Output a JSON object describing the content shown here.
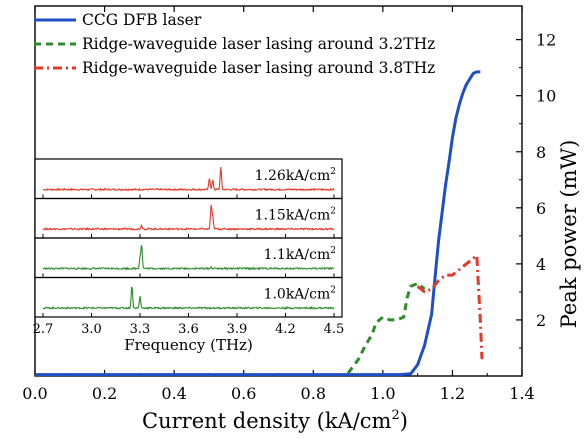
{
  "chart_data": [
    {
      "type": "line",
      "title": "",
      "xlabel": "Current density (kA/cm",
      "xlabel_sup": "2",
      "xlabel_end": ")",
      "ylabel": "Peak power (mW)",
      "xlim": [
        0.0,
        1.4
      ],
      "ylim": [
        0,
        13.2
      ],
      "xticks": [
        "0.0",
        "0.2",
        "0.4",
        "0.6",
        "0.8",
        "1.0",
        "1.2",
        "1.4"
      ],
      "yticks": [
        "2",
        "4",
        "6",
        "8",
        "10",
        "12"
      ],
      "legend_position": "top-left",
      "series": [
        {
          "name": "CCG DFB laser",
          "color": "#1f4fc4",
          "style": "solid",
          "x": [
            0.0,
            0.1,
            0.2,
            0.3,
            0.4,
            0.5,
            0.6,
            0.7,
            0.8,
            0.9,
            1.0,
            1.05,
            1.08,
            1.1,
            1.12,
            1.14,
            1.15,
            1.16,
            1.17,
            1.18,
            1.19,
            1.2,
            1.21,
            1.22,
            1.23,
            1.24,
            1.25,
            1.26,
            1.27,
            1.28
          ],
          "y": [
            0.05,
            0.05,
            0.05,
            0.05,
            0.05,
            0.05,
            0.05,
            0.05,
            0.05,
            0.05,
            0.05,
            0.05,
            0.08,
            0.4,
            1.1,
            2.2,
            3.5,
            4.8,
            5.8,
            6.8,
            7.6,
            8.5,
            9.2,
            9.7,
            10.1,
            10.4,
            10.6,
            10.8,
            10.85,
            10.85
          ]
        },
        {
          "name": "Ridge-waveguide laser lasing around 3.2THz",
          "color": "#2e8b2e",
          "style": "dashed",
          "x": [
            0.9,
            0.93,
            0.95,
            0.97,
            0.98,
            1.0,
            1.02,
            1.04,
            1.06,
            1.07,
            1.08,
            1.1,
            1.12
          ],
          "y": [
            0.1,
            0.6,
            1.1,
            1.5,
            1.9,
            2.1,
            2.0,
            2.0,
            2.1,
            2.8,
            3.2,
            3.3,
            3.1
          ]
        },
        {
          "name": "Ridge-waveguide laser lasing around 3.8THz",
          "color": "#e23a2a",
          "style": "dash-dot",
          "x": [
            1.1,
            1.12,
            1.14,
            1.16,
            1.18,
            1.2,
            1.22,
            1.24,
            1.26,
            1.27,
            1.28,
            1.285
          ],
          "y": [
            3.2,
            3.0,
            3.1,
            3.4,
            3.6,
            3.6,
            3.8,
            4.0,
            4.2,
            4.3,
            2.0,
            0.6
          ]
        }
      ]
    },
    {
      "type": "line",
      "title": "",
      "xlabel": "Frequency (THz)",
      "xlim": [
        2.7,
        4.5
      ],
      "xticks": [
        "2.7",
        "3.0",
        "3.3",
        "3.6",
        "3.9",
        "4.2",
        "4.5"
      ],
      "series": [
        {
          "name": "1.26kA/cm",
          "name_sup": "2",
          "color": "#e23a2a",
          "peaks": [
            [
              3.73,
              0.45
            ],
            [
              3.75,
              0.35
            ],
            [
              3.8,
              0.85
            ]
          ]
        },
        {
          "name": "1.15kA/cm",
          "name_sup": "2",
          "color": "#e23a2a",
          "peaks": [
            [
              3.31,
              0.15
            ],
            [
              3.74,
              0.9
            ],
            [
              3.75,
              0.45
            ]
          ]
        },
        {
          "name": "1.1kA/cm",
          "name_sup": "2",
          "color": "#2e8b2e",
          "peaks": [
            [
              3.31,
              0.92
            ],
            [
              3.3,
              0.4
            ],
            [
              3.74,
              0.05
            ]
          ]
        },
        {
          "name": "1.0kA/cm",
          "name_sup": "2",
          "color": "#2e8b2e",
          "peaks": [
            [
              3.25,
              0.88
            ],
            [
              3.3,
              0.45
            ]
          ]
        }
      ]
    }
  ]
}
